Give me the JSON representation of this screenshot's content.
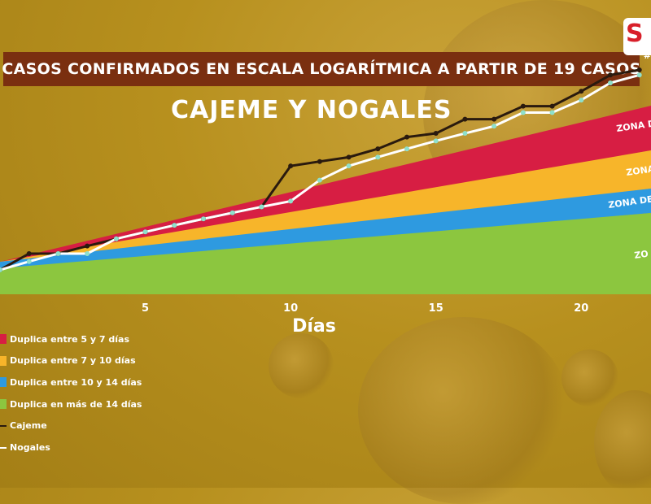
{
  "header": {
    "title": "CASOS CONFIRMADOS EN ESCALA LOGARÍTMICA A PARTIR DE 19 CASOS",
    "subtitle": "CAJEME Y NOGALES",
    "logo_text": "S",
    "logo_tag": "#"
  },
  "colors": {
    "zone_5_7": "#d71e43",
    "zone_7_10": "#f7b52a",
    "zone_10_14": "#2e9ae0",
    "zone_14_plus": "#8cc63f",
    "cajeme": "#2a1a0e",
    "nogales": "#ffffff",
    "marker": "#8fe0cc",
    "title_bar": "#7a2f10"
  },
  "chart_data": {
    "type": "area",
    "title": "CASOS CONFIRMADOS EN ESCALA LOGARÍTMICA A PARTIR DE 19 CASOS",
    "subtitle": "CAJEME Y NOGALES",
    "xlabel": "Días",
    "ylabel": "",
    "yscale": "log",
    "xlim": [
      0,
      22.4
    ],
    "x_ticks": [
      5,
      10,
      15,
      20
    ],
    "grid": false,
    "legend_position": "bottom-left",
    "zone_labels": [
      "ZONA D",
      "ZONA",
      "ZONA DE",
      "ZO"
    ],
    "bands": [
      {
        "name": "Duplica entre 5 y 7 días",
        "color": "#d71e43"
      },
      {
        "name": "Duplica entre 7 y 10 días",
        "color": "#f7b52a"
      },
      {
        "name": "Duplica entre 10 y 14 días",
        "color": "#2e9ae0"
      },
      {
        "name": "Duplica en más de 14 días",
        "color": "#8cc63f"
      }
    ],
    "series": [
      {
        "name": "Cajeme",
        "color": "#2a1a0e",
        "x": [
          0,
          1,
          2,
          3,
          4,
          5,
          6,
          7,
          8,
          9,
          10,
          11,
          12,
          13,
          14,
          15,
          16,
          17,
          18,
          19,
          20,
          21,
          22
        ],
        "values": [
          19,
          21,
          21,
          22,
          23,
          24,
          25,
          26,
          27,
          28,
          36,
          37,
          38,
          40,
          43,
          44,
          48,
          48,
          52,
          52,
          57,
          63,
          65
        ]
      },
      {
        "name": "Nogales",
        "color": "#ffffff",
        "x": [
          0,
          1,
          2,
          3,
          4,
          5,
          6,
          7,
          8,
          9,
          10,
          11,
          12,
          13,
          14,
          15,
          16,
          17,
          18,
          19,
          20,
          21,
          22
        ],
        "values": [
          19,
          20,
          21,
          21,
          23,
          24,
          25,
          26,
          27,
          28,
          29,
          33,
          36,
          38,
          40,
          42,
          44,
          46,
          50,
          50,
          54,
          60,
          63
        ]
      }
    ]
  },
  "legend": {
    "items": [
      {
        "label": "Duplica entre 5 y 7 días",
        "color": "#d71e43",
        "kind": "band"
      },
      {
        "label": "Duplica entre 7 y 10 días",
        "color": "#f7b52a",
        "kind": "band"
      },
      {
        "label": "Duplica entre 10 y 14 días",
        "color": "#2e9ae0",
        "kind": "band"
      },
      {
        "label": "Duplica en más de 14 días",
        "color": "#8cc63f",
        "kind": "band"
      },
      {
        "label": "Cajeme",
        "color": "#2a1a0e",
        "kind": "line"
      },
      {
        "label": "Nogales",
        "color": "#ffffff",
        "kind": "line"
      }
    ]
  }
}
